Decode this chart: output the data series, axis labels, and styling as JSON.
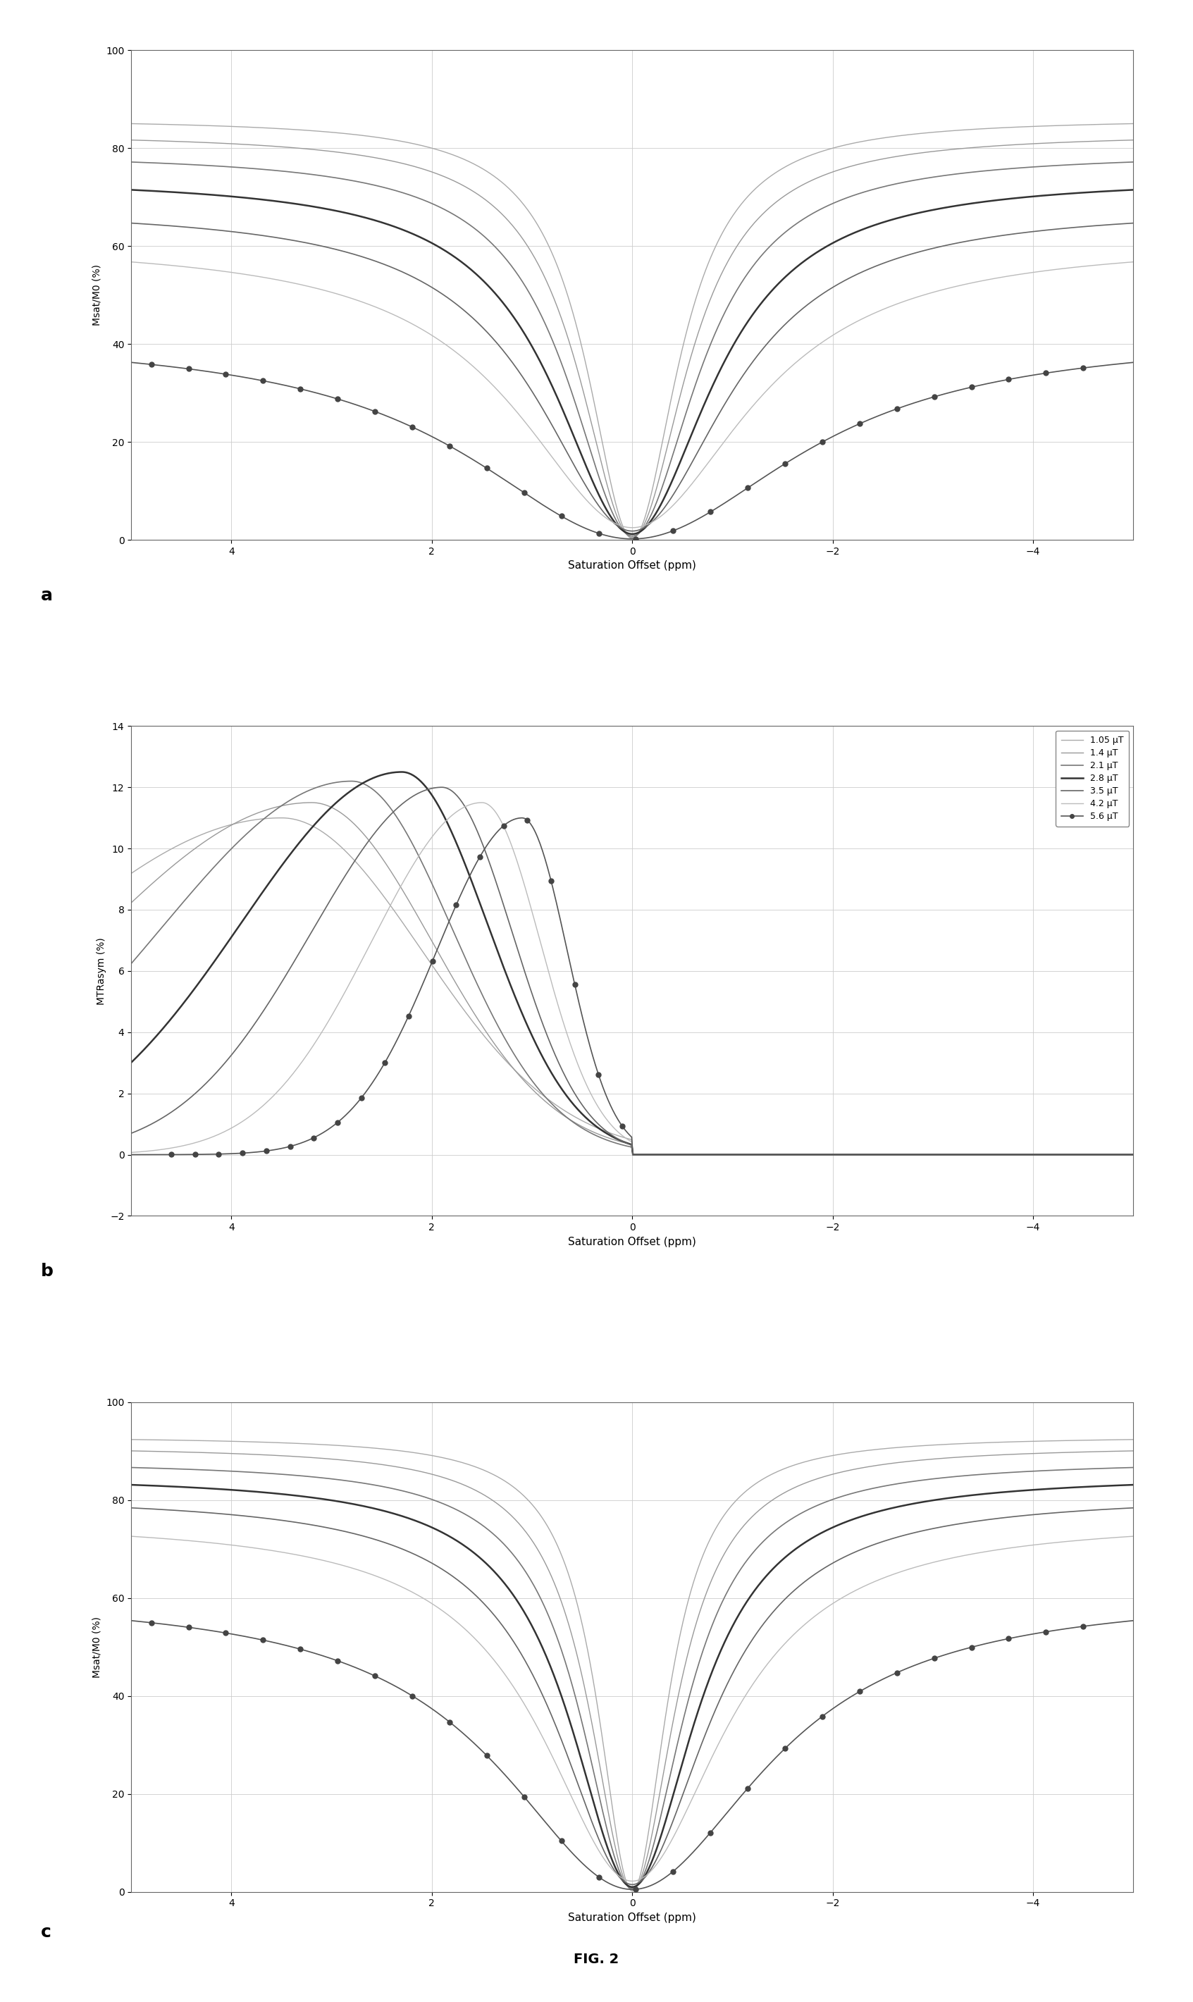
{
  "legend_labels": [
    "1.05 μT",
    "1.4 μT",
    "2.1 μT",
    "2.8 μT",
    "3.5 μT",
    "4.2 μT",
    "5.6 μT"
  ],
  "fig_caption": "FIG. 2",
  "panel_a": {
    "ylabel": "Msat/M0 (%)",
    "xlabel": "Saturation Offset (ppm)",
    "xlim": [
      5.0,
      -5.0
    ],
    "ylim": [
      0,
      100
    ],
    "xticks": [
      4,
      2,
      0,
      -2,
      -4
    ],
    "yticks": [
      0,
      20,
      40,
      60,
      80,
      100
    ],
    "plateau_vals": [
      86,
      83,
      79,
      74,
      68,
      61,
      42
    ],
    "min_vals": [
      0.3,
      0.5,
      0.8,
      1.2,
      1.8,
      2.5,
      0.2
    ],
    "widths": [
      0.55,
      0.65,
      0.78,
      0.95,
      1.15,
      1.4,
      2.0
    ]
  },
  "panel_b": {
    "ylabel": "MTRasym (%)",
    "xlabel": "Saturation Offset (ppm)",
    "xlim": [
      5.0,
      -5.0
    ],
    "ylim": [
      -2,
      14
    ],
    "xticks": [
      4,
      2,
      0,
      -2,
      -4
    ],
    "yticks": [
      -2,
      0,
      2,
      4,
      6,
      8,
      10,
      12,
      14
    ],
    "peak_offsets": [
      3.5,
      3.2,
      2.8,
      2.3,
      1.9,
      1.5,
      1.1
    ],
    "peak_heights": [
      11.0,
      11.5,
      12.2,
      12.5,
      12.0,
      11.5,
      11.0
    ],
    "left_sigmas": [
      1.4,
      1.2,
      1.0,
      0.85,
      0.7,
      0.58,
      0.45
    ],
    "right_sigmas": [
      2.5,
      2.2,
      1.9,
      1.6,
      1.3,
      1.1,
      0.85
    ]
  },
  "panel_c": {
    "ylabel": "Msat/M0 (%)",
    "xlabel": "Saturation Offset (ppm)",
    "xlim": [
      5.0,
      -5.0
    ],
    "ylim": [
      0,
      100
    ],
    "xticks": [
      4,
      2,
      0,
      -2,
      -4
    ],
    "yticks": [
      0,
      20,
      40,
      60,
      80,
      100
    ],
    "plateau_vals": [
      93,
      91,
      88,
      85,
      81,
      76,
      61
    ],
    "min_vals": [
      0.2,
      0.4,
      0.7,
      1.0,
      1.5,
      2.2,
      0.5
    ],
    "widths": [
      0.42,
      0.52,
      0.63,
      0.76,
      0.92,
      1.1,
      1.6
    ]
  },
  "line_colors": [
    "#aaaaaa",
    "#999999",
    "#777777",
    "#333333",
    "#666666",
    "#bbbbbb",
    "#555555"
  ],
  "line_widths": [
    1.0,
    1.0,
    1.2,
    1.8,
    1.2,
    1.0,
    1.2
  ],
  "dot_color": "#444444",
  "dot_markersize": 5,
  "grid_color": "#cccccc",
  "grid_lw": 0.6,
  "spine_color": "#666666",
  "tick_labelsize": 10,
  "xlabel_fontsize": 11,
  "ylabel_fontsize": 10,
  "panel_label_fontsize": 18,
  "legend_fontsize": 9
}
